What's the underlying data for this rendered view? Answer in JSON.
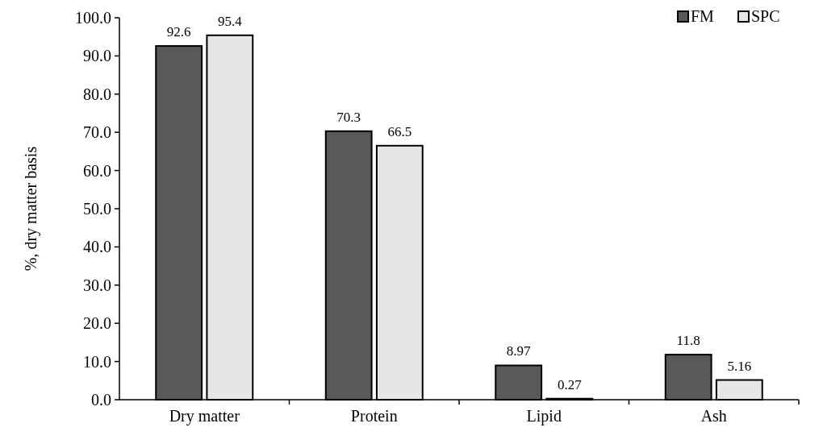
{
  "chart_data": {
    "type": "bar",
    "ylabel": "%, dry matter basis",
    "categories": [
      "Dry matter",
      "Protein",
      "Lipid",
      "Ash"
    ],
    "series": [
      {
        "name": "FM",
        "color": "#595959",
        "values": [
          92.6,
          70.3,
          8.97,
          11.8
        ]
      },
      {
        "name": "SPC",
        "color": "#e7e6e6",
        "values": [
          95.4,
          66.5,
          0.27,
          5.16
        ]
      }
    ],
    "ylim": [
      0,
      100
    ],
    "yticks": [
      {
        "value": 0,
        "label": "0.0"
      },
      {
        "value": 10,
        "label": "10.0"
      },
      {
        "value": 20,
        "label": "20.0"
      },
      {
        "value": 30,
        "label": "30.0"
      },
      {
        "value": 40,
        "label": "40.0"
      },
      {
        "value": 50,
        "label": "50.0"
      },
      {
        "value": 60,
        "label": "60.0"
      },
      {
        "value": 70,
        "label": "70.0"
      },
      {
        "value": 80,
        "label": "80.0"
      },
      {
        "value": 90,
        "label": "90.0"
      },
      {
        "value": 100,
        "label": "100.0"
      }
    ],
    "data_labels": true,
    "legend": "top right",
    "grid": false
  }
}
